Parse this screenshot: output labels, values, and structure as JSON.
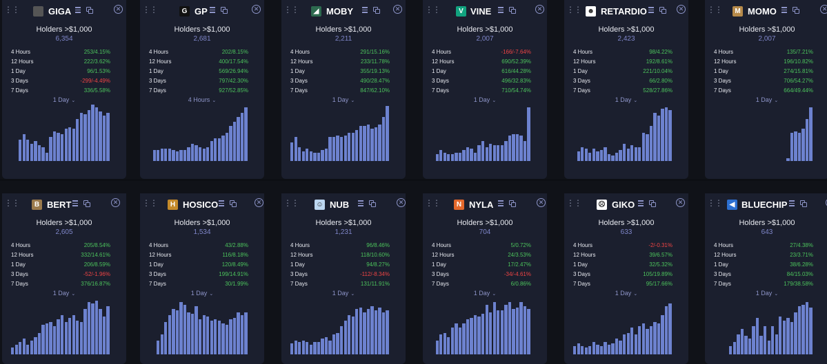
{
  "holders_label": "Holders >$1,000",
  "row_labels": [
    "4 Hours",
    "12 Hours",
    "1 Day",
    "3 Days",
    "7 Days"
  ],
  "colors": {
    "bar": "#6d82cf",
    "positive": "#4cc35c",
    "negative": "#ef4444",
    "accent": "#8e95c9",
    "card": "#1b1f2e"
  },
  "cards": [
    {
      "name": "GIGA",
      "icon": "giga-avatar-icon",
      "icon_color": "#555",
      "icon_glyph": "",
      "holders": "6,354",
      "stats": [
        "253/4.15%",
        "222/3.62%",
        "96/1.53%",
        "-299/-4.49%",
        "336/5.58%"
      ],
      "neg": [
        false,
        false,
        false,
        true,
        false
      ],
      "period": "1 Day",
      "bars": [
        30,
        38,
        30,
        24,
        28,
        22,
        20,
        12,
        34,
        42,
        40,
        38,
        46,
        48,
        46,
        60,
        68,
        66,
        72,
        80,
        76,
        70,
        64,
        68
      ]
    },
    {
      "name": "GP",
      "icon": "gp-logo-icon",
      "icon_color": "#111",
      "icon_glyph": "G",
      "holders": "2,681",
      "stats": [
        "202/8.15%",
        "400/17.54%",
        "569/26.94%",
        "797/42.30%",
        "927/52.85%"
      ],
      "neg": [
        false,
        false,
        false,
        false,
        false
      ],
      "period": "4 Hours",
      "bars": [
        16,
        16,
        18,
        18,
        18,
        16,
        14,
        16,
        16,
        20,
        24,
        22,
        20,
        18,
        20,
        28,
        32,
        32,
        36,
        40,
        50,
        56,
        62,
        68,
        76
      ]
    },
    {
      "name": "MOBY",
      "icon": "moby-logo-icon",
      "icon_color": "#2d6a4f",
      "icon_glyph": "◢",
      "holders": "2,211",
      "stats": [
        "291/15.16%",
        "233/11.78%",
        "355/19.13%",
        "490/28.47%",
        "847/62.10%"
      ],
      "neg": [
        false,
        false,
        false,
        false,
        false
      ],
      "period": "1 Day",
      "bars": [
        26,
        34,
        20,
        14,
        18,
        14,
        12,
        12,
        16,
        18,
        34,
        34,
        36,
        34,
        36,
        40,
        40,
        44,
        50,
        50,
        52,
        46,
        48,
        52,
        62,
        78
      ]
    },
    {
      "name": "VINE",
      "icon": "vine-logo-icon",
      "icon_color": "#11a37f",
      "icon_glyph": "V",
      "holders": "2,007",
      "stats": [
        "-166/-7.64%",
        "690/52.39%",
        "616/44.28%",
        "496/32.83%",
        "710/54.74%"
      ],
      "neg": [
        true,
        false,
        false,
        false,
        false
      ],
      "period": "1 Day",
      "bars": [
        10,
        16,
        12,
        10,
        10,
        12,
        12,
        16,
        20,
        18,
        12,
        22,
        28,
        20,
        24,
        22,
        22,
        22,
        28,
        36,
        38,
        38,
        36,
        28,
        76
      ]
    },
    {
      "name": "RETARDIO",
      "icon": "retardio-logo-icon",
      "icon_color": "#fff",
      "icon_glyph": "☻",
      "holders": "2,423",
      "stats": [
        "98/4.22%",
        "192/8.61%",
        "221/10.04%",
        "66/2.80%",
        "528/27.86%"
      ],
      "neg": [
        false,
        false,
        false,
        false,
        false
      ],
      "period": "1 Day",
      "bars": [
        14,
        20,
        18,
        12,
        18,
        14,
        16,
        20,
        10,
        8,
        12,
        16,
        24,
        18,
        22,
        20,
        20,
        40,
        38,
        50,
        68,
        64,
        74,
        76,
        72
      ]
    },
    {
      "name": "MOMO",
      "icon": "momo-logo-icon",
      "icon_color": "#b68a4a",
      "icon_glyph": "M",
      "holders": "2,007",
      "stats": [
        "135/7.21%",
        "196/10.82%",
        "274/15.81%",
        "706/54.27%",
        "664/49.44%"
      ],
      "neg": [
        false,
        false,
        false,
        false,
        false
      ],
      "period": "1 Day",
      "bars": [
        0,
        0,
        0,
        0,
        0,
        0,
        0,
        0,
        0,
        0,
        0,
        0,
        0,
        0,
        0,
        0,
        0,
        0,
        4,
        40,
        42,
        40,
        46,
        60,
        76
      ]
    },
    {
      "name": "BERT",
      "icon": "bert-logo-icon",
      "icon_color": "#9b7a4c",
      "icon_glyph": "B",
      "holders": "2,605",
      "stats": [
        "205/8.54%",
        "332/14.61%",
        "206/8.59%",
        "-52/-1.96%",
        "376/16.87%"
      ],
      "neg": [
        false,
        false,
        false,
        true,
        false
      ],
      "period": "1 Day",
      "bars": [
        10,
        14,
        18,
        22,
        14,
        20,
        24,
        30,
        42,
        44,
        46,
        40,
        50,
        56,
        46,
        52,
        56,
        48,
        46,
        64,
        74,
        72,
        76,
        64,
        54,
        68
      ]
    },
    {
      "name": "HOSICO",
      "icon": "hosico-logo-icon",
      "icon_color": "#c48a2a",
      "icon_glyph": "H",
      "holders": "1,534",
      "stats": [
        "43/2.88%",
        "116/8.18%",
        "120/8.49%",
        "199/14.91%",
        "30/1.99%"
      ],
      "neg": [
        false,
        false,
        false,
        false,
        false
      ],
      "period": "1 Day",
      "bars": [
        20,
        28,
        46,
        56,
        64,
        62,
        74,
        70,
        60,
        58,
        68,
        50,
        56,
        54,
        48,
        50,
        48,
        44,
        42,
        50,
        52,
        60,
        56,
        60
      ]
    },
    {
      "name": "NUB",
      "icon": "nub-logo-icon",
      "icon_color": "#bcd6f0",
      "icon_glyph": "☺",
      "holders": "1,231",
      "stats": [
        "96/8.46%",
        "118/10.60%",
        "94/8.27%",
        "-112/-8.34%",
        "131/11.91%"
      ],
      "neg": [
        false,
        false,
        false,
        true,
        false
      ],
      "period": "1 Day",
      "bars": [
        16,
        20,
        18,
        20,
        18,
        14,
        18,
        18,
        22,
        24,
        20,
        28,
        30,
        40,
        48,
        56,
        54,
        64,
        66,
        60,
        64,
        68,
        62,
        66,
        60,
        62
      ]
    },
    {
      "name": "NYLA",
      "icon": "nyla-logo-icon",
      "icon_color": "#e4682c",
      "icon_glyph": "N",
      "holders": "704",
      "stats": [
        "5/0.72%",
        "24/3.53%",
        "17/2.47%",
        "-34/-4.61%",
        "6/0.86%"
      ],
      "neg": [
        false,
        false,
        false,
        true,
        false
      ],
      "period": "1 Day",
      "bars": [
        20,
        28,
        30,
        24,
        38,
        44,
        38,
        44,
        50,
        52,
        56,
        54,
        58,
        70,
        60,
        74,
        62,
        62,
        70,
        74,
        64,
        66,
        74,
        68,
        64
      ]
    },
    {
      "name": "GIKO",
      "icon": "giko-logo-icon",
      "icon_color": "#fff",
      "icon_glyph": "☹",
      "holders": "633",
      "stats": [
        "-2/-0.31%",
        "39/6.57%",
        "32/5.32%",
        "105/19.89%",
        "95/17.66%"
      ],
      "neg": [
        true,
        false,
        false,
        false,
        false
      ],
      "period": "1 Day",
      "bars": [
        12,
        16,
        12,
        10,
        12,
        18,
        14,
        12,
        18,
        14,
        16,
        22,
        20,
        28,
        30,
        38,
        28,
        40,
        44,
        36,
        40,
        46,
        44,
        56,
        68,
        72
      ]
    },
    {
      "name": "BLUECHIP",
      "icon": "bluechip-logo-icon",
      "icon_color": "#2c6fd1",
      "icon_glyph": "◀",
      "holders": "643",
      "stats": [
        "27/4.38%",
        "23/3.71%",
        "38/6.28%",
        "84/15.03%",
        "179/38.58%"
      ],
      "neg": [
        false,
        false,
        false,
        false,
        false
      ],
      "period": "1 Day",
      "bars": [
        12,
        18,
        28,
        36,
        26,
        22,
        40,
        52,
        26,
        40,
        20,
        40,
        28,
        54,
        48,
        52,
        46,
        60,
        68,
        70,
        74,
        66
      ]
    }
  ]
}
